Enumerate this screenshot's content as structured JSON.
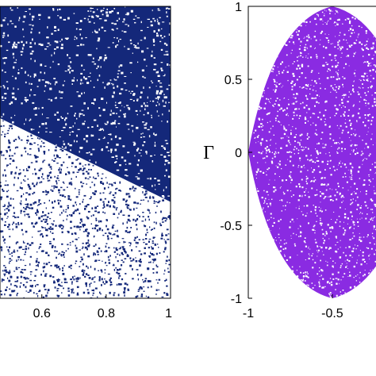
{
  "chart_data": [
    {
      "type": "scatter",
      "panel": "left",
      "x_tick_labels": [
        "0.6",
        "0.8",
        "1"
      ],
      "x_ticks": [
        0.6,
        0.8,
        1.0
      ],
      "xlim": [
        0.47,
        1.0
      ],
      "ylim": [
        0,
        1
      ],
      "background_color": "#14287a",
      "point_color": "#ffffff",
      "overlay_color": "#14287a",
      "boundary_line": {
        "x": [
          0.47,
          1.0
        ],
        "y": [
          0.617,
          0.33
        ]
      },
      "title": "",
      "xlabel": "",
      "ylabel": ""
    },
    {
      "type": "scatter",
      "panel": "right",
      "x_tick_labels": [
        "-1",
        "-0.5"
      ],
      "x_ticks": [
        -1,
        -0.5
      ],
      "y_tick_labels": [
        "1",
        "0.5",
        "0",
        "-0.5",
        "-1"
      ],
      "y_ticks": [
        1,
        0.5,
        0,
        -0.5,
        -1
      ],
      "xlim": [
        -1,
        -0.24
      ],
      "ylim": [
        -1,
        1
      ],
      "ylabel": "Γ",
      "point_color": "#8a2be2",
      "region": {
        "left_vertex": [
          -1,
          0
        ],
        "top_vertex": [
          -0.5,
          1
        ],
        "bottom_vertex": [
          -0.5,
          -1
        ]
      },
      "title": "",
      "xlabel": ""
    }
  ]
}
